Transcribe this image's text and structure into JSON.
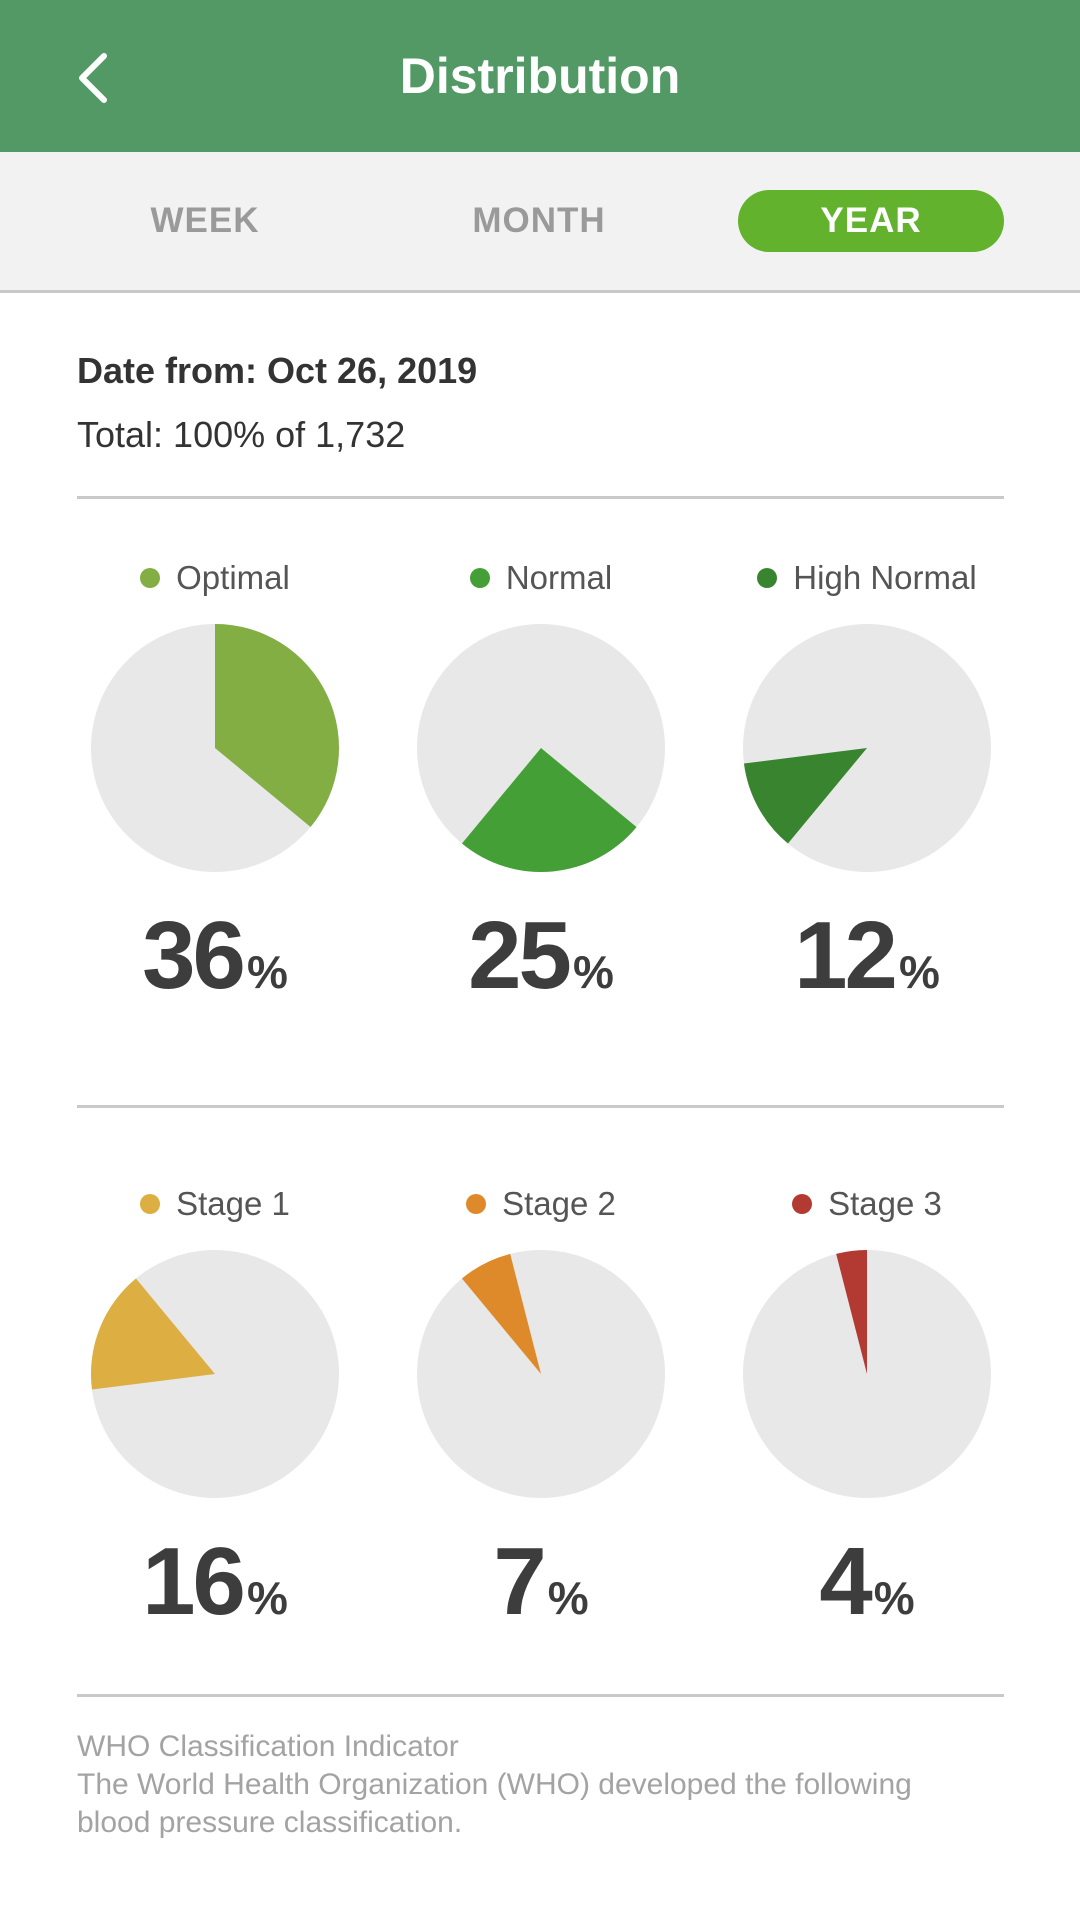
{
  "header": {
    "title": "Distribution",
    "back_icon": "chevron-left-icon"
  },
  "tabs": [
    {
      "label": "WEEK",
      "active": false
    },
    {
      "label": "MONTH",
      "active": false
    },
    {
      "label": "YEAR",
      "active": true
    }
  ],
  "summary": {
    "date_label": "Date from: Oct 26, 2019",
    "total_label": "Total: 100% of 1,732"
  },
  "chart_data": {
    "type": "pie",
    "series": [
      {
        "name": "Optimal",
        "value": 36,
        "unit": "%",
        "color": "#82ae44"
      },
      {
        "name": "Normal",
        "value": 25,
        "unit": "%",
        "color": "#44a036"
      },
      {
        "name": "High Normal",
        "value": 12,
        "unit": "%",
        "color": "#39852f"
      },
      {
        "name": "Stage 1",
        "value": 16,
        "unit": "%",
        "color": "#ddae42"
      },
      {
        "name": "Stage 2",
        "value": 7,
        "unit": "%",
        "color": "#df8a2a"
      },
      {
        "name": "Stage 3",
        "value": 4,
        "unit": "%",
        "color": "#b23a33"
      }
    ],
    "background_color": "#e8e8e8"
  },
  "footer": {
    "title": "WHO Classification Indicator",
    "line1": "The World Health Organization (WHO) developed the following",
    "line2": "blood pressure classification."
  }
}
